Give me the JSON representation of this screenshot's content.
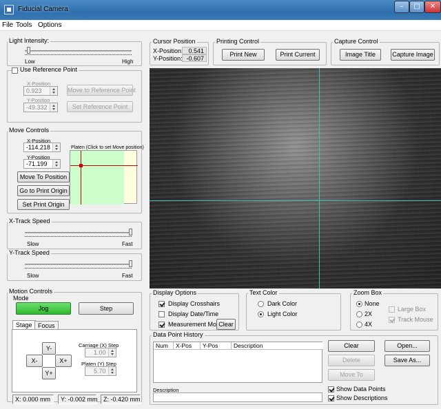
{
  "window": {
    "title": "Fiducial Camera",
    "min": "–",
    "max": "□",
    "close": "✕"
  },
  "menu": [
    "File",
    "Tools",
    "Options"
  ],
  "light": {
    "label": "Light Intensity:",
    "low": "Low",
    "high": "High",
    "level": 0.02
  },
  "reference": {
    "label": "Use Reference Point",
    "checked": false,
    "x_label": "X-Position",
    "x_value": "0.923",
    "y_label": "Y-Position",
    "y_value": "-49.332",
    "move_button": "Move to Reference Point",
    "set_button": "Set Reference Point"
  },
  "move": {
    "label": "Move Controls",
    "x_label": "X-Position",
    "x_value": "-114.218",
    "y_label": "Y-Position",
    "y_value": "-71.199",
    "platen_label": "Platen (Click to set Move position)",
    "move_to_position": "Move To Position",
    "go_to_print_origin": "Go to Print Origin",
    "set_print_origin": "Set Print Origin"
  },
  "x_track": {
    "label": "X-Track Speed",
    "slow": "Slow",
    "fast": "Fast",
    "level": 1.0
  },
  "y_track": {
    "label": "Y-Track Speed",
    "slow": "Slow",
    "fast": "Fast",
    "level": 1.0
  },
  "motion": {
    "label": "Motion Controls",
    "mode_label": "Mode",
    "jog": "Jog",
    "step": "Step",
    "tabs": [
      "Stage",
      "Focus"
    ],
    "y_minus": "Y-",
    "x_minus": "X-",
    "x_plus": "X+",
    "y_plus": "Y+",
    "carriage_label": "Carriage (X) Step",
    "carriage_value": "1.00",
    "platen_label": "Platen (Y) Step",
    "platen_value": "5.70"
  },
  "status": {
    "x": "X: 0.000 mm",
    "y": "Y: -0.002 mm",
    "z": "Z: -0.420 mm"
  },
  "cursor": {
    "label": "Cursor Position",
    "x_label": "X-Position:",
    "x_value": "0.541",
    "y_label": "Y-Position:",
    "y_value": "-0.607"
  },
  "printing": {
    "label": "Printing Control",
    "print_new": "Print New",
    "print_current": "Print Current"
  },
  "capture": {
    "label": "Capture Control",
    "image_title": "Image Title",
    "capture_image": "Capture Image"
  },
  "display": {
    "label": "Display Options",
    "crosshairs": "Display Crosshairs",
    "crosshairs_on": true,
    "datetime": "Display Date/Time",
    "datetime_on": false,
    "measurement": "Measurement Mode",
    "measurement_on": true,
    "clear": "Clear"
  },
  "text_color": {
    "label": "Text Color",
    "dark": "Dark Color",
    "light": "Light Color",
    "selected": "light"
  },
  "zoom": {
    "label": "Zoom Box",
    "none": "None",
    "x2": "2X",
    "x4": "4X",
    "selected": "none",
    "large_box": "Large Box",
    "track_mouse": "Track Mouse",
    "track_mouse_on": true
  },
  "history": {
    "label": "Data Point History",
    "columns": [
      "Num",
      "X-Pos",
      "Y-Pos",
      "Description"
    ],
    "description_label": "Description",
    "clear": "Clear",
    "open": "Open...",
    "delete": "Delete",
    "save_as": "Save As...",
    "move_to": "Move To",
    "show_points": "Show Data Points",
    "show_points_on": true,
    "show_desc": "Show Descriptions",
    "show_desc_on": true
  }
}
